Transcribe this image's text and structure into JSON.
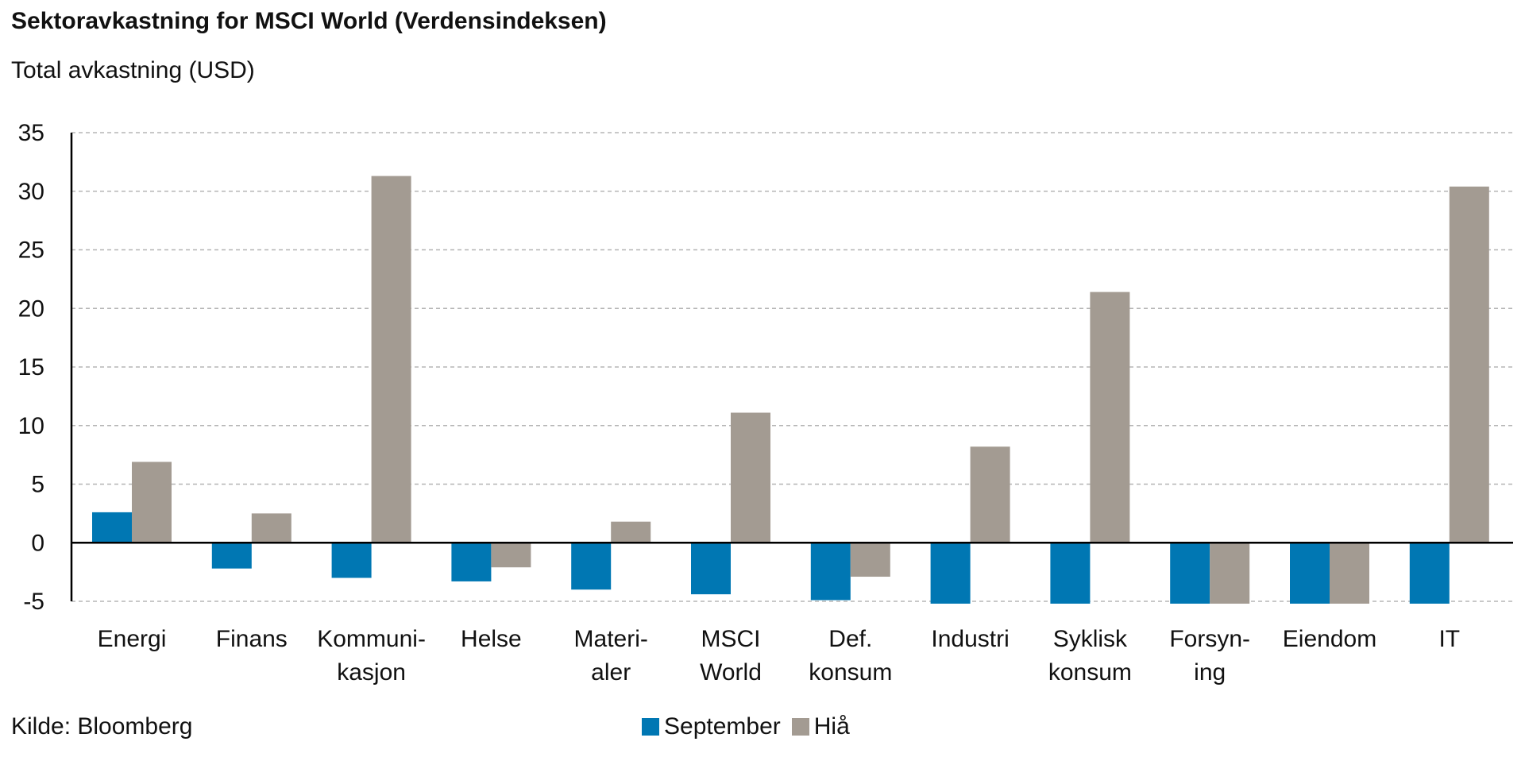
{
  "chart_data": {
    "type": "bar",
    "title": "Sektoravkastning for MSCI World (Verdensindeksen)",
    "subtitle": "Total avkastning (USD)",
    "xlabel": "",
    "ylabel": "",
    "ylim": [
      -5,
      35
    ],
    "yticks": [
      35,
      30,
      25,
      20,
      15,
      10,
      5,
      0,
      -5
    ],
    "grid": true,
    "legend_position": "bottom",
    "categories": [
      [
        "Energi"
      ],
      [
        "Finans"
      ],
      [
        "Kommuni-",
        "kasjon"
      ],
      [
        "Helse"
      ],
      [
        "Materi-",
        "aler"
      ],
      [
        "MSCI",
        "World"
      ],
      [
        "Def.",
        "konsum"
      ],
      [
        "Industri"
      ],
      [
        "Syklisk",
        "konsum"
      ],
      [
        "Forsyn-",
        "ing"
      ],
      [
        "Eiendom"
      ],
      [
        "IT"
      ]
    ],
    "series": [
      {
        "name": "September",
        "color": "#0077B3",
        "values": [
          2.6,
          -2.2,
          -3.0,
          -3.3,
          -4.0,
          -4.4,
          -4.9,
          -5.2,
          -5.2,
          -5.2,
          -5.2,
          -5.2
        ]
      },
      {
        "name": "Hiå",
        "color": "#A39B92",
        "values": [
          6.9,
          2.5,
          31.3,
          -2.1,
          1.8,
          11.1,
          -2.9,
          8.2,
          21.4,
          -5.2,
          -5.2,
          30.4
        ]
      }
    ]
  },
  "source": "Kilde: Bloomberg"
}
